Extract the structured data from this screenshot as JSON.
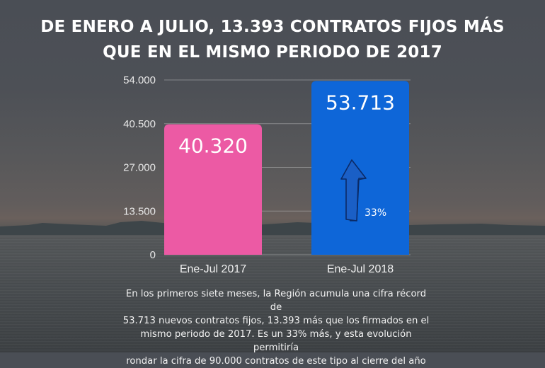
{
  "title": {
    "line1": "DE ENERO A JULIO, 13.393 CONTRATOS FIJOS MÁS",
    "line2": "QUE EN EL MISMO PERIODO DE  2017"
  },
  "chart_data": {
    "type": "bar",
    "title": "DE ENERO A JULIO, 13.393 CONTRATOS FIJOS MÁS QUE EN EL MISMO PERIODO DE 2017",
    "xlabel": "",
    "ylabel": "",
    "categories": [
      "Ene-Jul 2017",
      "Ene-Jul 2018"
    ],
    "values": [
      40320,
      53713
    ],
    "value_labels": [
      "40.320",
      "53.713"
    ],
    "colors": [
      "#ec5aa4",
      "#0e66d8"
    ],
    "ylim": [
      0,
      54000
    ],
    "yticks": [
      0,
      13500,
      27000,
      40500,
      54000
    ],
    "ytick_labels": [
      "0",
      "13.500",
      "27.000",
      "40.500",
      "54.000"
    ],
    "grid": true,
    "legend": "none",
    "annotations": [
      {
        "text": "33%",
        "category": "Ene-Jul 2018",
        "icon": "up-arrow-icon"
      }
    ]
  },
  "caption": {
    "lines": [
      "En los primeros siete meses, la Región acumula una cifra récord de",
      "53.713 nuevos contratos fijos, 13.393 más que los firmados en el",
      "mismo periodo de 2017. Es un 33% más, y esta evolución permitiría",
      "rondar la cifra de 90.000 contratos de este tipo al cierre del año"
    ]
  }
}
